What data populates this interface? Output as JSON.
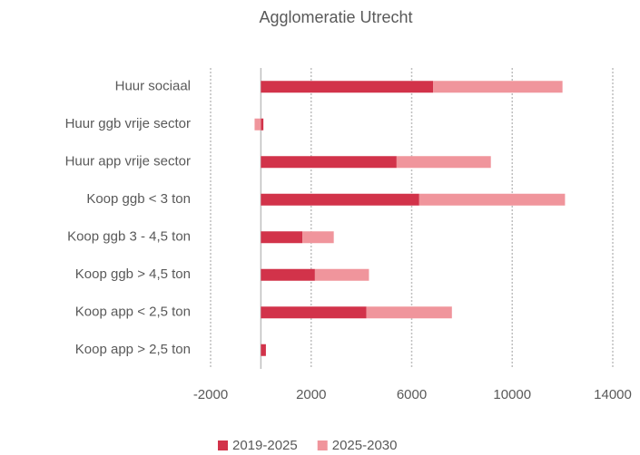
{
  "chart_data": {
    "type": "bar",
    "orientation": "horizontal",
    "stacked": true,
    "title": "Agglomeratie Utrecht",
    "categories": [
      "Huur sociaal",
      "Huur ggb vrije sector",
      "Huur app vrije sector",
      "Koop ggb < 3 ton",
      "Koop ggb 3 - 4,5 ton",
      "Koop ggb > 4,5 ton",
      "Koop app < 2,5 ton",
      "Koop app > 2,5 ton"
    ],
    "series": [
      {
        "name": "2019-2025",
        "color": "#d2334a",
        "values": [
          6850,
          100,
          5400,
          6300,
          1650,
          2150,
          4200,
          200
        ]
      },
      {
        "name": "2025-2030",
        "color": "#f0959c",
        "values": [
          5150,
          -250,
          3750,
          5800,
          1250,
          2150,
          3400,
          0
        ]
      }
    ],
    "xlim": [
      -2000,
      14000
    ],
    "xticks": [
      -2000,
      2000,
      6000,
      10000,
      14000
    ],
    "grid": true,
    "legend": "bottom"
  }
}
